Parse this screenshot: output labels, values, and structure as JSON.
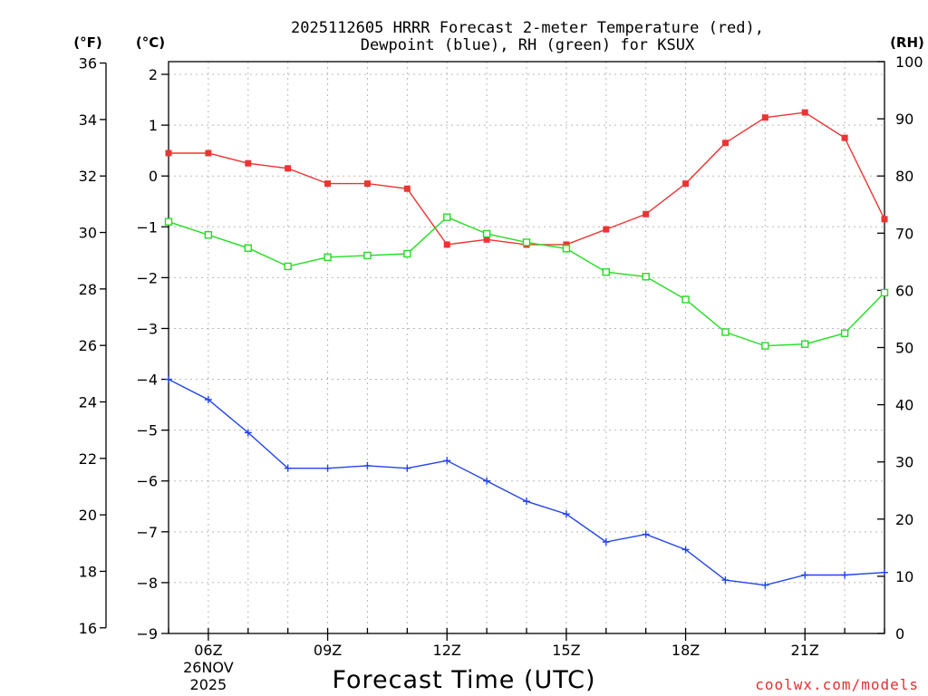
{
  "chart_data": {
    "type": "line",
    "title": [
      "2025112605 HRRR Forecast 2-meter Temperature (red),",
      "Dewpoint (blue), RH (green) for KSUX"
    ],
    "xlabel": "Forecast Time (UTC)",
    "credit": "coolwx.com/models",
    "units": {
      "fahrenheit": "(°F)",
      "celsius": "(°C)",
      "rh": "(RH)"
    },
    "x_hours": [
      5,
      6,
      7,
      8,
      9,
      10,
      11,
      12,
      13,
      14,
      15,
      16,
      17,
      18,
      19,
      20,
      21,
      22,
      23
    ],
    "xlim": [
      5,
      23
    ],
    "x_ticks": [
      {
        "hour": 6,
        "label": "06Z",
        "sub": [
          "26NOV",
          "2025"
        ]
      },
      {
        "hour": 9,
        "label": "09Z"
      },
      {
        "hour": 12,
        "label": "12Z"
      },
      {
        "hour": 15,
        "label": "15Z"
      },
      {
        "hour": 18,
        "label": "18Z"
      },
      {
        "hour": 21,
        "label": "21Z"
      }
    ],
    "celsius_axis": {
      "ylim": [
        -9,
        2.25
      ],
      "ticks": [
        2,
        1,
        0,
        -1,
        -2,
        -3,
        -4,
        -5,
        -6,
        -7,
        -8,
        -9
      ]
    },
    "fahrenheit_axis": {
      "ticks": [
        36,
        34,
        32,
        30,
        28,
        26,
        24,
        22,
        20,
        18,
        16
      ]
    },
    "rh_axis": {
      "ylim": [
        0,
        100
      ],
      "ticks": [
        100,
        90,
        80,
        70,
        60,
        50,
        40,
        30,
        20,
        10,
        0
      ]
    },
    "series": [
      {
        "name": "2-meter Temperature",
        "axis": "celsius",
        "color": "#ee3333",
        "marker": "filled-square",
        "values": [
          0.45,
          0.45,
          0.25,
          0.15,
          -0.15,
          -0.15,
          -0.25,
          -1.35,
          -1.25,
          -1.35,
          -1.35,
          -1.05,
          -0.75,
          -0.15,
          0.65,
          1.15,
          1.25,
          0.75,
          -0.85
        ]
      },
      {
        "name": "Dewpoint",
        "axis": "celsius",
        "color": "#2244ee",
        "marker": "plus",
        "values": [
          -4.0,
          -4.4,
          -5.05,
          -5.75,
          -5.75,
          -5.7,
          -5.75,
          -5.6,
          -6.0,
          -6.4,
          -6.65,
          -7.2,
          -7.05,
          -7.35,
          -7.95,
          -8.05,
          -7.85,
          -7.85,
          -7.8
        ]
      },
      {
        "name": "RH",
        "axis": "rh",
        "color": "#22dd22",
        "marker": "open-square",
        "values": [
          72.0,
          69.7,
          67.4,
          64.2,
          65.8,
          66.1,
          66.4,
          72.8,
          69.9,
          68.4,
          67.3,
          63.2,
          62.4,
          58.4,
          52.7,
          50.3,
          50.6,
          52.5,
          59.6
        ]
      }
    ]
  }
}
